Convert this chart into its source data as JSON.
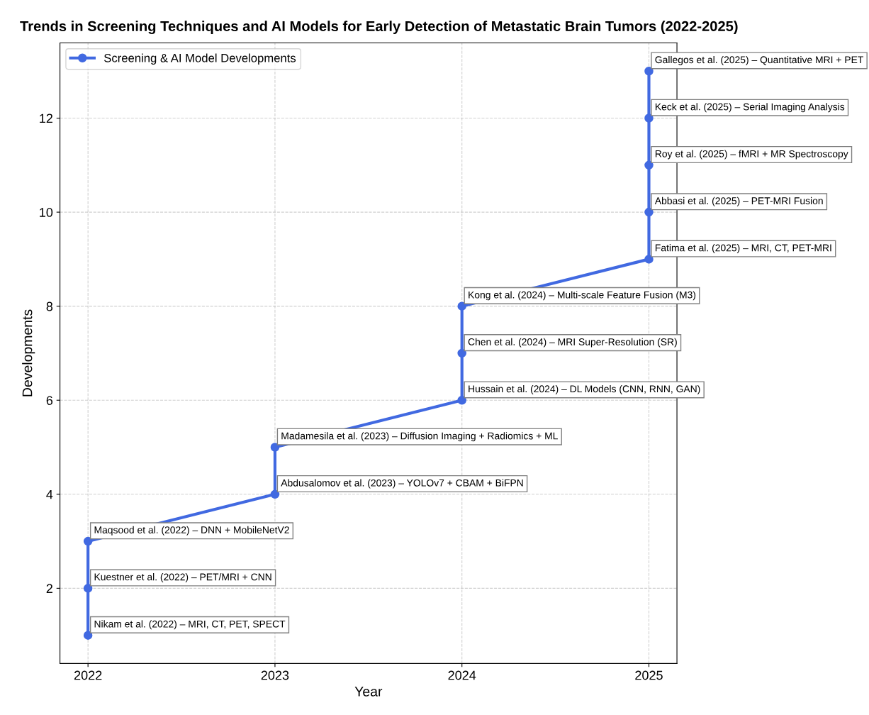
{
  "chart_data": {
    "type": "line",
    "title": "Trends in Screening Techniques and AI Models for Early Detection of Metastatic Brain Tumors (2022-2025)",
    "xlabel": "Year",
    "ylabel": "Developments",
    "x": [
      2022,
      2022,
      2022,
      2023,
      2023,
      2024,
      2024,
      2024,
      2025,
      2025,
      2025,
      2025,
      2025
    ],
    "series": [
      {
        "name": "Screening & AI Model Developments",
        "color": "#4169e1",
        "values": [
          1,
          2,
          3,
          4,
          5,
          6,
          7,
          8,
          9,
          10,
          11,
          12,
          13
        ]
      }
    ],
    "xlim": [
      2021.85,
      2025.15
    ],
    "ylim": [
      0.4,
      13.6
    ],
    "xticks": [
      2022,
      2023,
      2024,
      2025
    ],
    "yticks": [
      2,
      4,
      6,
      8,
      10,
      12
    ],
    "grid": true,
    "legend": "top left",
    "marker": "circle",
    "line_style": "solid",
    "annotations": [
      {
        "text": "Nikam et al. (2022) – MRI, CT, PET, SPECT",
        "x": 2022,
        "y": 1
      },
      {
        "text": "Kuestner et al. (2022) – PET/MRI + CNN",
        "x": 2022,
        "y": 2
      },
      {
        "text": "Maqsood et al. (2022) – DNN + MobileNetV2",
        "x": 2022,
        "y": 3
      },
      {
        "text": "Abdusalomov et al. (2023) – YOLOv7 + CBAM + BiFPN",
        "x": 2023,
        "y": 4
      },
      {
        "text": "Madamesila et al. (2023) – Diffusion Imaging + Radiomics + ML",
        "x": 2023,
        "y": 5
      },
      {
        "text": "Hussain et al. (2024) – DL Models (CNN, RNN, GAN)",
        "x": 2024,
        "y": 6
      },
      {
        "text": "Chen et al. (2024) – MRI Super-Resolution (SR)",
        "x": 2024,
        "y": 7
      },
      {
        "text": "Kong et al. (2024) – Multi-scale Feature Fusion (M3)",
        "x": 2024,
        "y": 8
      },
      {
        "text": "Fatima et al. (2025) – MRI, CT, PET-MRI",
        "x": 2025,
        "y": 9
      },
      {
        "text": "Abbasi et al. (2025) – PET-MRI Fusion",
        "x": 2025,
        "y": 10
      },
      {
        "text": "Roy et al. (2025) – fMRI + MR Spectroscopy",
        "x": 2025,
        "y": 11
      },
      {
        "text": "Keck et al. (2025) – Serial Imaging Analysis",
        "x": 2025,
        "y": 12
      },
      {
        "text": "Gallegos et al. (2025) – Quantitative MRI + PET",
        "x": 2025,
        "y": 13
      }
    ]
  }
}
